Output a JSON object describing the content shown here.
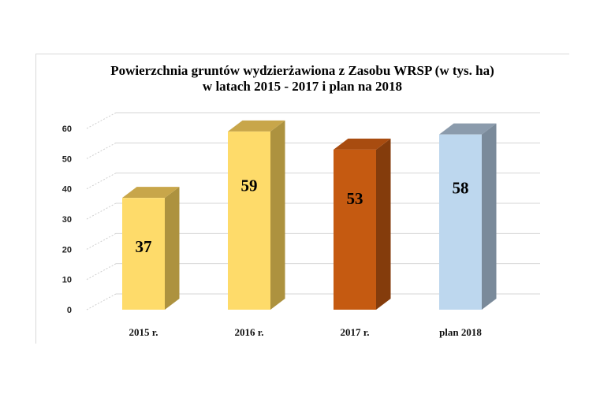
{
  "chart_data": {
    "type": "bar",
    "title_lines": [
      "Powierzchnia gruntów  wydzierżawiona z Zasobu WRSP (w tys. ha)",
      "w latach 2015 - 2017 i plan na 2018"
    ],
    "categories": [
      "2015 r.",
      "2016 r.",
      "2017 r.",
      "plan 2018"
    ],
    "values": [
      37,
      59,
      53,
      58
    ],
    "data_labels": [
      "37",
      "59",
      "53",
      "58"
    ],
    "bar_colors": [
      {
        "front": "#fedb6a",
        "side": "#ad923f",
        "top": "#c8a64a"
      },
      {
        "front": "#fedb6a",
        "side": "#ad923f",
        "top": "#c8a64a"
      },
      {
        "front": "#c55a11",
        "side": "#843c0c",
        "top": "#a84c10"
      },
      {
        "front": "#bdd7ee",
        "side": "#7a8a9a",
        "top": "#8b9bac"
      }
    ],
    "yticks": [
      "0",
      "10",
      "20",
      "30",
      "40",
      "50",
      "60"
    ],
    "ylim": [
      0,
      60
    ],
    "gridlines": true,
    "legend": "none",
    "style": "3d-column"
  }
}
